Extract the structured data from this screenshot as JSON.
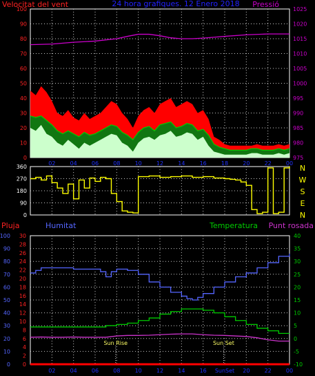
{
  "chart_data": [
    {
      "type": "line",
      "title": "24 hora grafiques. 12 Enero 2018",
      "left_label": "Velocitat del vent",
      "right_label": "Pressió",
      "x_tick_labels": [
        "02",
        "04",
        "06",
        "08",
        "10",
        "12",
        "14",
        "16",
        "18",
        "20",
        "22",
        "00"
      ],
      "ylim_left": [
        0,
        100
      ],
      "ytick_left": [
        0,
        10,
        20,
        30,
        40,
        50,
        60,
        70,
        80,
        90,
        100
      ],
      "ylim_right": [
        975,
        1025
      ],
      "ytick_right": [
        975,
        980,
        985,
        990,
        995,
        1000,
        1005,
        1010,
        1015,
        1020,
        1025
      ],
      "grid": true,
      "series": [
        {
          "role": "gust",
          "color": "#ff0000",
          "axis": "left",
          "x": [
            0,
            0.5,
            1,
            1.5,
            2,
            2.5,
            3,
            3.5,
            4,
            4.5,
            5,
            5.5,
            6,
            6.5,
            7,
            7.5,
            8,
            8.5,
            9,
            9.5,
            10,
            10.5,
            11,
            11.5,
            12,
            12.5,
            13,
            13.5,
            14,
            14.5,
            15,
            15.5,
            16,
            16.5,
            17,
            17.5,
            18,
            18.5,
            19,
            19.5,
            20,
            20.5,
            21,
            21.5,
            22,
            22.5,
            23,
            23.5,
            24
          ],
          "values": [
            45,
            42,
            48,
            44,
            38,
            30,
            28,
            32,
            27,
            25,
            30,
            26,
            28,
            30,
            34,
            38,
            36,
            30,
            26,
            20,
            28,
            32,
            34,
            30,
            36,
            38,
            40,
            34,
            36,
            38,
            36,
            30,
            32,
            26,
            14,
            12,
            9,
            8,
            8,
            8,
            8,
            8,
            9,
            8,
            8,
            8,
            9,
            8,
            9
          ]
        },
        {
          "role": "wind",
          "color": "#00cc00",
          "axis": "left",
          "x": [
            0,
            0.5,
            1,
            1.5,
            2,
            2.5,
            3,
            3.5,
            4,
            4.5,
            5,
            5.5,
            6,
            6.5,
            7,
            7.5,
            8,
            8.5,
            9,
            9.5,
            10,
            10.5,
            11,
            11.5,
            12,
            12.5,
            13,
            13.5,
            14,
            14.5,
            15,
            15.5,
            16,
            16.5,
            17,
            17.5,
            18,
            18.5,
            19,
            19.5,
            20,
            20.5,
            21,
            21.5,
            22,
            22.5,
            23,
            23.5,
            24
          ],
          "values": [
            28,
            27,
            28,
            25,
            22,
            18,
            16,
            18,
            16,
            14,
            17,
            15,
            16,
            18,
            20,
            22,
            21,
            17,
            15,
            12,
            17,
            20,
            21,
            18,
            22,
            23,
            24,
            20,
            21,
            23,
            22,
            18,
            19,
            15,
            9,
            7,
            6,
            5,
            5,
            5,
            5,
            6,
            6,
            5,
            5,
            5,
            6,
            5,
            6
          ]
        },
        {
          "role": "wind-min",
          "color": "#ccffcc",
          "axis": "left",
          "x": [
            0,
            0.5,
            1,
            1.5,
            2,
            2.5,
            3,
            3.5,
            4,
            4.5,
            5,
            5.5,
            6,
            6.5,
            7,
            7.5,
            8,
            8.5,
            9,
            9.5,
            10,
            10.5,
            11,
            11.5,
            12,
            12.5,
            13,
            13.5,
            14,
            14.5,
            15,
            15.5,
            16,
            16.5,
            17,
            17.5,
            18,
            18.5,
            19,
            19.5,
            20,
            20.5,
            21,
            21.5,
            22,
            22.5,
            23,
            23.5,
            24
          ],
          "values": [
            20,
            18,
            22,
            16,
            14,
            10,
            8,
            12,
            9,
            6,
            10,
            8,
            10,
            12,
            14,
            16,
            15,
            10,
            8,
            4,
            10,
            13,
            14,
            12,
            15,
            16,
            18,
            14,
            15,
            17,
            16,
            12,
            14,
            8,
            4,
            3,
            2,
            2,
            2,
            2,
            2,
            3,
            3,
            2,
            2,
            2,
            3,
            2,
            3
          ]
        },
        {
          "role": "pressure",
          "color": "#cc00cc",
          "axis": "right",
          "x": [
            0,
            2,
            4,
            6,
            8,
            9,
            10,
            11,
            12,
            13,
            14,
            15,
            16,
            17,
            18,
            20,
            22,
            24
          ],
          "values": [
            1013.0,
            1013.2,
            1013.8,
            1014.2,
            1015.0,
            1015.8,
            1016.5,
            1016.5,
            1016.0,
            1015.3,
            1015.0,
            1015.0,
            1015.2,
            1015.5,
            1015.8,
            1016.3,
            1016.6,
            1016.6
          ]
        }
      ]
    },
    {
      "type": "line",
      "ylim": [
        0,
        360
      ],
      "ytick": [
        0,
        45,
        90,
        135,
        180,
        225,
        270,
        315,
        360
      ],
      "compass_labels": [
        "N",
        "W",
        "S",
        "E",
        "N"
      ],
      "grid": true,
      "series": [
        {
          "role": "direction",
          "color": "#ffff00",
          "x": [
            0,
            0.5,
            1,
            1.5,
            2,
            2.5,
            3,
            3.5,
            4,
            4.5,
            5,
            5.5,
            6,
            6.5,
            7,
            7.5,
            8,
            8.5,
            9,
            9.5,
            10,
            11,
            12,
            13,
            14,
            15,
            16,
            17,
            18,
            18.5,
            19,
            19.5,
            20,
            20.5,
            21,
            21.5,
            22,
            22.5,
            23,
            23.5,
            24
          ],
          "values": [
            270,
            280,
            260,
            290,
            240,
            200,
            160,
            230,
            120,
            260,
            200,
            275,
            250,
            280,
            270,
            160,
            100,
            30,
            20,
            15,
            285,
            290,
            280,
            285,
            290,
            280,
            285,
            275,
            270,
            265,
            260,
            245,
            220,
            40,
            10,
            20,
            350,
            10,
            20,
            350,
            360
          ]
        }
      ]
    },
    {
      "type": "line",
      "left_label_1": "Pluja",
      "left_label_2": "Humitat",
      "right_label_1": "Temperatura",
      "right_label_2": "Punt rosada",
      "x_tick_labels": [
        "02",
        "04",
        "06",
        "08",
        "10",
        "12",
        "14",
        "16",
        "SunSet",
        "20",
        "22",
        "00"
      ],
      "ylim_humidity": [
        0,
        100
      ],
      "ytick_humidity": [
        0,
        10,
        20,
        30,
        40,
        50,
        60,
        70,
        80,
        90,
        100
      ],
      "ylim_rain": [
        0,
        30
      ],
      "ytick_rain": [
        0,
        2,
        4,
        6,
        8,
        10,
        12,
        14,
        16,
        18,
        20,
        22,
        24,
        26,
        28,
        30
      ],
      "ylim_temp": [
        -10,
        40
      ],
      "ytick_temp": [
        -10,
        -5,
        0,
        5,
        10,
        15,
        20,
        25,
        30,
        35,
        40
      ],
      "grid": true,
      "annotations": [
        {
          "label": "Sun Rise",
          "x": 7.9
        },
        {
          "label": "Sun Set",
          "x": 17.9
        }
      ],
      "series": [
        {
          "role": "humidity",
          "color": "#5566ff",
          "axis": "humidity",
          "x": [
            0,
            0.5,
            1,
            2,
            3,
            4,
            5,
            6,
            6.5,
            7,
            7.5,
            8,
            9,
            10,
            11,
            12,
            13,
            14,
            14.5,
            15,
            15.5,
            16,
            17,
            18,
            19,
            20,
            21,
            22,
            23,
            24
          ],
          "values": [
            71,
            73,
            75,
            75,
            75,
            74,
            74,
            74,
            72,
            68,
            72,
            74,
            73,
            70,
            64,
            60,
            56,
            53,
            51,
            50,
            52,
            55,
            60,
            64,
            68,
            71,
            75,
            79,
            84,
            86
          ]
        },
        {
          "role": "temperature",
          "color": "#00cc00",
          "axis": "temp",
          "x": [
            0,
            1,
            2,
            3,
            4,
            5,
            6,
            7,
            8,
            9,
            10,
            11,
            12,
            13,
            14,
            15,
            16,
            17,
            18,
            19,
            20,
            21,
            22,
            23,
            24
          ],
          "values": [
            4.5,
            4.5,
            4.5,
            4.5,
            4.5,
            4.5,
            4.5,
            5.0,
            5.5,
            6.0,
            7.0,
            8.0,
            9.5,
            10.5,
            11.5,
            11.5,
            11.0,
            10.0,
            8.5,
            7.0,
            5.5,
            4.0,
            3.0,
            2.0,
            2.0
          ]
        },
        {
          "role": "dew-point",
          "color": "#cc33cc",
          "axis": "temp",
          "x": [
            0,
            1,
            2,
            3,
            4,
            5,
            6,
            7,
            8,
            9,
            10,
            11,
            12,
            13,
            14,
            15,
            16,
            17,
            18,
            19,
            20,
            21,
            22,
            23,
            24
          ],
          "values": [
            0.5,
            0.6,
            0.5,
            0.5,
            0.6,
            0.5,
            0.5,
            0.5,
            1.0,
            1.2,
            1.2,
            1.3,
            1.5,
            1.7,
            1.8,
            1.8,
            1.5,
            1.3,
            1.2,
            1.0,
            0.8,
            0.3,
            -0.5,
            -1.0,
            -1.0
          ]
        },
        {
          "role": "rain",
          "color": "#ff0000",
          "axis": "rain",
          "x": [
            0,
            24
          ],
          "values": [
            0,
            0
          ]
        }
      ]
    }
  ]
}
